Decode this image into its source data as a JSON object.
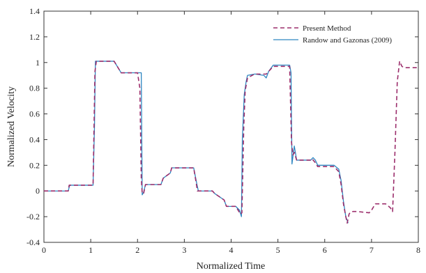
{
  "chart_data": {
    "type": "line",
    "title": "",
    "xlabel": "Normalized Time",
    "ylabel": "Normalized Velocity",
    "xlim": [
      0,
      8
    ],
    "ylim": [
      -0.4,
      1.4
    ],
    "xticks": [
      "0",
      "1",
      "2",
      "3",
      "4",
      "5",
      "6",
      "7",
      "8"
    ],
    "yticks": [
      "-0.4",
      "-0.2",
      "0",
      "0.2",
      "0.4",
      "0.6",
      "0.8",
      "1",
      "1.2",
      "1.4"
    ],
    "grid": false,
    "legend_position": "top-right",
    "series": [
      {
        "name": "Present Method",
        "style": "dashed",
        "color": "#9b2d6b",
        "x": [
          0,
          0.52,
          0.54,
          1.05,
          1.09,
          1.12,
          1.2,
          1.5,
          1.6,
          1.65,
          2.0,
          2.05,
          2.08,
          2.1,
          2.13,
          2.17,
          2.5,
          2.55,
          2.7,
          2.73,
          3.2,
          3.25,
          3.28,
          3.6,
          3.65,
          3.85,
          3.9,
          4.1,
          4.2,
          4.23,
          4.27,
          4.3,
          4.35,
          4.5,
          4.52,
          4.75,
          4.8,
          4.9,
          5.25,
          5.29,
          5.32,
          5.35,
          5.4,
          5.5,
          5.7,
          5.73,
          5.8,
          5.85,
          5.87,
          6.2,
          6.3,
          6.35,
          6.4,
          6.45,
          6.48,
          6.52,
          6.55,
          6.6,
          6.7,
          6.95,
          7.0,
          7.08,
          7.12,
          7.3,
          7.4,
          7.45,
          7.5,
          7.55,
          7.6,
          7.65,
          7.7,
          8.0
        ],
        "y": [
          0,
          0,
          0.045,
          0.045,
          0.93,
          1.01,
          1.01,
          1.01,
          0.95,
          0.92,
          0.92,
          0.8,
          0.1,
          -0.02,
          -0.02,
          0.05,
          0.05,
          0.1,
          0.14,
          0.18,
          0.18,
          0.07,
          0,
          0,
          -0.02,
          -0.07,
          -0.12,
          -0.12,
          -0.18,
          -0.17,
          0.5,
          0.78,
          0.88,
          0.91,
          0.91,
          0.91,
          0.93,
          0.97,
          0.97,
          0.38,
          0.28,
          0.3,
          0.24,
          0.24,
          0.24,
          0.25,
          0.22,
          0.19,
          0.19,
          0.19,
          0.15,
          0.05,
          -0.1,
          -0.2,
          -0.25,
          -0.18,
          -0.165,
          -0.16,
          -0.16,
          -0.17,
          -0.15,
          -0.1,
          -0.1,
          -0.1,
          -0.13,
          -0.16,
          0.3,
          0.85,
          1.01,
          0.97,
          0.96,
          0.96
        ]
      },
      {
        "name": "Randow and Gazonas (2009)",
        "style": "solid",
        "color": "#2e86c1",
        "x": [
          0,
          0.52,
          0.55,
          1.05,
          1.08,
          1.1,
          1.2,
          1.5,
          1.6,
          1.65,
          2.0,
          2.08,
          2.1,
          2.13,
          2.17,
          2.5,
          2.55,
          2.7,
          2.73,
          3.2,
          3.27,
          3.3,
          3.6,
          3.65,
          3.85,
          3.9,
          4.1,
          4.18,
          4.22,
          4.24,
          4.28,
          4.32,
          4.35,
          4.5,
          4.52,
          4.7,
          4.75,
          4.8,
          4.9,
          5.25,
          5.28,
          5.3,
          5.35,
          5.4,
          5.5,
          5.7,
          5.75,
          5.8,
          5.85,
          6.2,
          6.3,
          6.35,
          6.4,
          6.45,
          6.5
        ],
        "y": [
          0,
          0,
          0.045,
          0.045,
          0.5,
          1.01,
          1.01,
          1.01,
          0.95,
          0.92,
          0.92,
          0.92,
          -0.03,
          -0.01,
          0.05,
          0.05,
          0.1,
          0.14,
          0.18,
          0.18,
          0.05,
          0,
          0,
          -0.02,
          -0.07,
          -0.12,
          -0.12,
          -0.15,
          -0.2,
          0.4,
          0.75,
          0.85,
          0.9,
          0.91,
          0.91,
          0.9,
          0.88,
          0.93,
          0.98,
          0.98,
          0.92,
          0.21,
          0.35,
          0.24,
          0.24,
          0.24,
          0.26,
          0.24,
          0.2,
          0.2,
          0.17,
          0.08,
          -0.08,
          -0.2,
          -0.25
        ]
      }
    ]
  }
}
